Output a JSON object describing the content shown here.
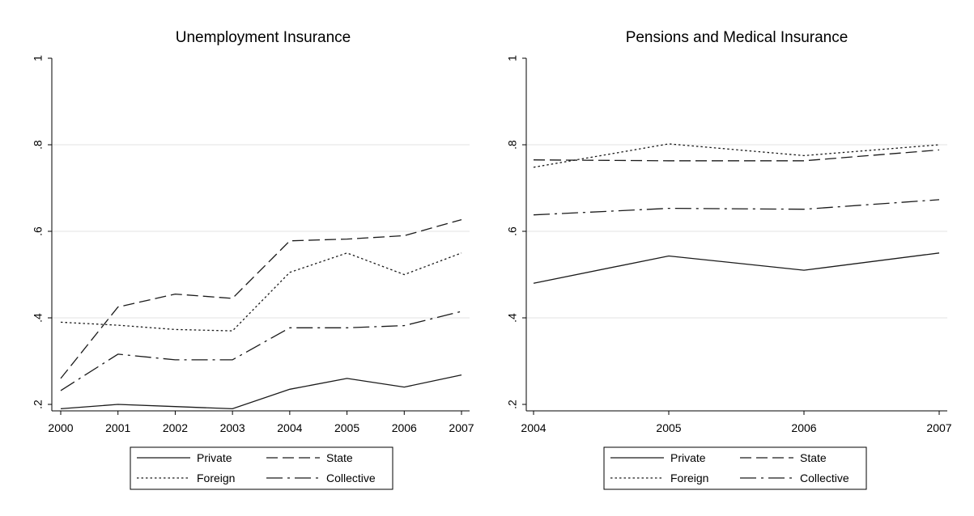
{
  "chart_data": [
    {
      "type": "line",
      "title": "Unemployment Insurance",
      "xlabel": "",
      "ylabel": "",
      "x": [
        2000,
        2001,
        2002,
        2003,
        2004,
        2005,
        2006,
        2007
      ],
      "x_tick_labels": [
        "2000",
        "2001",
        "2002",
        "2003",
        "2004",
        "2005",
        "2006",
        "2007"
      ],
      "ylim": [
        0.2,
        1.0
      ],
      "y_ticks": [
        0.2,
        0.4,
        0.6,
        0.8,
        1.0
      ],
      "y_tick_labels": [
        ".2",
        ".4",
        ".6",
        ".8",
        "1"
      ],
      "grid": true,
      "legend_position": "bottom",
      "series": [
        {
          "name": "Private",
          "style": "solid",
          "values": [
            0.19,
            0.2,
            0.195,
            0.19,
            0.235,
            0.26,
            0.24,
            0.268
          ]
        },
        {
          "name": "State",
          "style": "dash",
          "values": [
            0.26,
            0.425,
            0.455,
            0.445,
            0.578,
            0.582,
            0.59,
            0.627
          ]
        },
        {
          "name": "Foreign",
          "style": "dot",
          "values": [
            0.39,
            0.383,
            0.373,
            0.37,
            0.505,
            0.55,
            0.5,
            0.55
          ]
        },
        {
          "name": "Collective",
          "style": "longdash-dot",
          "values": [
            0.232,
            0.316,
            0.303,
            0.303,
            0.377,
            0.377,
            0.382,
            0.415
          ]
        }
      ]
    },
    {
      "type": "line",
      "title": "Pensions and Medical Insurance",
      "xlabel": "",
      "ylabel": "",
      "x": [
        2004,
        2005,
        2006,
        2007
      ],
      "x_tick_labels": [
        "2004",
        "2005",
        "2006",
        "2007"
      ],
      "ylim": [
        0.2,
        1.0
      ],
      "y_ticks": [
        0.2,
        0.4,
        0.6,
        0.8,
        1.0
      ],
      "y_tick_labels": [
        ".2",
        ".4",
        ".6",
        ".8",
        "1"
      ],
      "grid": true,
      "legend_position": "bottom",
      "series": [
        {
          "name": "Private",
          "style": "solid",
          "values": [
            0.48,
            0.543,
            0.51,
            0.55
          ]
        },
        {
          "name": "State",
          "style": "dash",
          "values": [
            0.765,
            0.763,
            0.763,
            0.788
          ]
        },
        {
          "name": "Foreign",
          "style": "dot",
          "values": [
            0.748,
            0.802,
            0.775,
            0.8
          ]
        },
        {
          "name": "Collective",
          "style": "longdash-dot",
          "values": [
            0.638,
            0.653,
            0.651,
            0.673
          ]
        }
      ]
    }
  ]
}
